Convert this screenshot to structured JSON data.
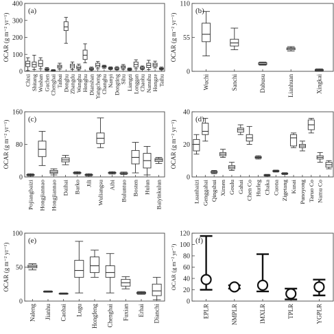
{
  "chart_data": [
    {
      "panel": "(a)",
      "type": "box",
      "ylabel": "OCAR (g m⁻² yr⁻¹)",
      "ylim": [
        0,
        400
      ],
      "yticks": [
        0,
        100,
        200,
        300,
        400
      ],
      "categories": [
        "Chixi",
        "Shitang",
        "Wushan",
        "Guchen",
        "Chenghai",
        "Taibai",
        "Donghu",
        "Zhangdu",
        "Wanghu",
        "Honghu",
        "Dianshan",
        "Yangcheng",
        "Changhu",
        "Nanyi",
        "Dongting",
        "Sihu",
        "Liangzi",
        "Longgan",
        "Chaohu",
        "Nansihu",
        "Hongze",
        "Taihu"
      ],
      "box_stats": [
        {
          "min": 5,
          "q1": 28,
          "median": 45,
          "q3": 60,
          "max": 80
        },
        {
          "min": 10,
          "q1": 25,
          "median": 40,
          "q3": 55,
          "max": 95
        },
        {
          "min": 15,
          "q1": 30,
          "median": 45,
          "q3": 65,
          "max": 80
        },
        {
          "min": 3,
          "q1": 8,
          "median": 12,
          "q3": 16,
          "max": 22
        },
        {
          "min": 0,
          "q1": 2,
          "median": 5,
          "q3": 8,
          "max": 10
        },
        {
          "min": 12,
          "q1": 20,
          "median": 28,
          "q3": 36,
          "max": 48
        },
        {
          "min": 165,
          "q1": 240,
          "median": 262,
          "q3": 292,
          "max": 318
        },
        {
          "min": 10,
          "q1": 20,
          "median": 32,
          "q3": 42,
          "max": 55
        },
        {
          "min": 8,
          "q1": 15,
          "median": 22,
          "q3": 32,
          "max": 42
        },
        {
          "min": 50,
          "q1": 70,
          "median": 95,
          "q3": 125,
          "max": 162
        },
        {
          "min": 5,
          "q1": 10,
          "median": 15,
          "q3": 20,
          "max": 25
        },
        {
          "min": 15,
          "q1": 25,
          "median": 35,
          "q3": 48,
          "max": 58
        },
        {
          "min": 18,
          "q1": 24,
          "median": 28,
          "q3": 32,
          "max": 36
        },
        {
          "min": 10,
          "q1": 14,
          "median": 18,
          "q3": 22,
          "max": 26
        },
        {
          "min": 8,
          "q1": 12,
          "median": 16,
          "q3": 22,
          "max": 28
        },
        {
          "min": 10,
          "q1": 18,
          "median": 25,
          "q3": 32,
          "max": 40
        },
        {
          "min": 5,
          "q1": 8,
          "median": 12,
          "q3": 16,
          "max": 20
        },
        {
          "min": 15,
          "q1": 25,
          "median": 40,
          "q3": 55,
          "max": 68
        },
        {
          "min": 10,
          "q1": 15,
          "median": 20,
          "q3": 26,
          "max": 32
        },
        {
          "min": 10,
          "q1": 22,
          "median": 35,
          "q3": 48,
          "max": 65
        },
        {
          "min": 20,
          "q1": 28,
          "median": 38,
          "q3": 48,
          "max": 60
        },
        {
          "min": 8,
          "q1": 12,
          "median": 16,
          "q3": 20,
          "max": 25
        }
      ]
    },
    {
      "panel": "(b)",
      "type": "box",
      "ylabel": "OCAR (g m⁻² yr⁻¹)",
      "ylim": [
        0,
        110
      ],
      "yticks": [
        0,
        55,
        110
      ],
      "categories": [
        "Wuchi",
        "Sanchi",
        "Dabusu",
        "Lianhuan",
        "Xingkai"
      ],
      "box_stats": [
        {
          "min": 25,
          "q1": 48,
          "median": 60,
          "q3": 78,
          "max": 97
        },
        {
          "min": 35,
          "q1": 41,
          "median": 46,
          "q3": 52,
          "max": 70
        },
        {
          "min": 10,
          "q1": 11,
          "median": 12,
          "q3": 14,
          "max": 15
        },
        {
          "min": 33,
          "q1": 35,
          "median": 37,
          "q3": 38,
          "max": 40
        },
        {
          "min": 0,
          "q1": 1,
          "median": 2,
          "q3": 3,
          "max": 4
        }
      ]
    },
    {
      "panel": "(c)",
      "type": "box",
      "ylabel": "OCAR (g m⁻² yr⁻¹)",
      "ylim": [
        0,
        160
      ],
      "yticks": [
        0,
        80,
        160
      ],
      "categories": [
        "Pojiangbaizi",
        "Hongjiannao",
        "Hongjiannao",
        "Daihai",
        "Barko",
        "Jili",
        "Wuliangsu",
        "Aibi",
        "Buluntuo",
        "Bosten",
        "Hulun",
        "Baiyinkulun"
      ],
      "box_stats": [
        {
          "min": 2,
          "q1": 4,
          "median": 5,
          "q3": 6,
          "max": 8
        },
        {
          "min": 28,
          "q1": 50,
          "median": 68,
          "q3": 88,
          "max": 112
        },
        {
          "min": 5,
          "q1": 9,
          "median": 12,
          "q3": 16,
          "max": 20
        },
        {
          "min": 30,
          "q1": 37,
          "median": 42,
          "q3": 47,
          "max": 53
        },
        {
          "min": 7,
          "q1": 9,
          "median": 10,
          "q3": 11,
          "max": 13
        },
        {
          "min": 2,
          "q1": 4,
          "median": 5,
          "q3": 6,
          "max": 8
        },
        {
          "min": 72,
          "q1": 82,
          "median": 95,
          "q3": 108,
          "max": 145
        },
        {
          "min": 7,
          "q1": 9,
          "median": 10,
          "q3": 11,
          "max": 13
        },
        {
          "min": 6,
          "q1": 8,
          "median": 9,
          "q3": 10,
          "max": 12
        },
        {
          "min": 10,
          "q1": 32,
          "median": 48,
          "q3": 65,
          "max": 85
        },
        {
          "min": 5,
          "q1": 22,
          "median": 40,
          "q3": 58,
          "max": 75
        },
        {
          "min": 33,
          "q1": 38,
          "median": 42,
          "q3": 45,
          "max": 48
        }
      ]
    },
    {
      "panel": "(d)",
      "type": "box",
      "ylabel": "OCAR (g m⁻² yr⁻¹)",
      "ylim": [
        0,
        40
      ],
      "yticks": [
        0,
        20,
        40
      ],
      "categories": [
        "Luanhaizi",
        "Genggahai",
        "Qingshui",
        "Ximen",
        "Goulu",
        "Gahai",
        "Chen Co",
        "Hurleg",
        "Chaka",
        "Cuona",
        "Zigetang",
        "Kusai",
        "Punoyong",
        "Taruo Co",
        "Namu Co",
        ""
      ],
      "box_stats": [
        {
          "min": 14,
          "q1": 16,
          "median": 20,
          "q3": 23,
          "max": 26
        },
        {
          "min": 22,
          "q1": 26,
          "median": 28,
          "q3": 33,
          "max": 36
        },
        {
          "min": 2,
          "q1": 2.5,
          "median": 3,
          "q3": 3.5,
          "max": 4
        },
        {
          "min": 12,
          "q1": 13,
          "median": 14,
          "q3": 15,
          "max": 17
        },
        {
          "min": 4,
          "q1": 5,
          "median": 6,
          "q3": 7,
          "max": 9
        },
        {
          "min": 26,
          "q1": 27.5,
          "median": 29,
          "q3": 30,
          "max": 32
        },
        {
          "min": 20,
          "q1": 22,
          "median": 24,
          "q3": 26,
          "max": 31
        },
        {
          "min": 11,
          "q1": 11.5,
          "median": 12,
          "q3": 12.5,
          "max": 13
        },
        {
          "min": 0.5,
          "q1": 0.8,
          "median": 1,
          "q3": 1.3,
          "max": 1.6
        },
        {
          "min": 3,
          "q1": 3.3,
          "median": 3.6,
          "q3": 3.9,
          "max": 4.2
        },
        {
          "min": 1.5,
          "q1": 1.8,
          "median": 2,
          "q3": 2.3,
          "max": 2.6
        },
        {
          "min": 18,
          "q1": 19,
          "median": 24,
          "q3": 26,
          "max": 27
        },
        {
          "min": 16,
          "q1": 18,
          "median": 19,
          "q3": 20,
          "max": 22
        },
        {
          "min": 27,
          "q1": 29,
          "median": 32,
          "q3": 35,
          "max": 36
        },
        {
          "min": 9,
          "q1": 11,
          "median": 12,
          "q3": 13,
          "max": 15
        },
        {
          "min": 5,
          "q1": 6,
          "median": 7.5,
          "q3": 9,
          "max": 10
        }
      ]
    },
    {
      "panel": "(e)",
      "type": "box",
      "ylabel": "OCAR (g m⁻² yr⁻¹)",
      "ylim": [
        0,
        100
      ],
      "yticks": [
        0,
        50,
        100
      ],
      "categories": [
        "Naleng",
        "Jianhu",
        "Caohai",
        "Lugu",
        "Hongfeng",
        "Chenghai",
        "Fuxian",
        "Erhai",
        "Dianchi"
      ],
      "box_stats": [
        {
          "min": 46,
          "q1": 49,
          "median": 51,
          "q3": 53,
          "max": 55
        },
        {
          "min": 13,
          "q1": 13.5,
          "median": 14,
          "q3": 14.5,
          "max": 15
        },
        {
          "min": 10,
          "q1": 10.5,
          "median": 11,
          "q3": 11.5,
          "max": 12
        },
        {
          "min": 12,
          "q1": 35,
          "median": 45,
          "q3": 60,
          "max": 88
        },
        {
          "min": 35,
          "q1": 42,
          "median": 52,
          "q3": 65,
          "max": 75
        },
        {
          "min": 12,
          "q1": 35,
          "median": 42,
          "q3": 52,
          "max": 70
        },
        {
          "min": 18,
          "q1": 22,
          "median": 27,
          "q3": 32,
          "max": 36
        },
        {
          "min": 10,
          "q1": 11,
          "median": 12,
          "q3": 13,
          "max": 14
        },
        {
          "min": 2,
          "q1": 8,
          "median": 15,
          "q3": 25,
          "max": 35
        }
      ]
    },
    {
      "panel": "(f)",
      "type": "errorbar",
      "ylabel": "OCAR (g m⁻² yr⁻¹)",
      "ylim": [
        0,
        120
      ],
      "yticks": [
        0,
        20,
        40,
        60,
        80,
        100,
        120
      ],
      "categories": [
        "EPLR",
        "NMPLR",
        "IMXLR",
        "TPLR",
        "YGPLR"
      ],
      "points": [
        {
          "mean": 38,
          "low": 20,
          "high": 115
        },
        {
          "mean": 25,
          "low": 22,
          "high": 28
        },
        {
          "mean": 28,
          "low": 17,
          "high": 83
        },
        {
          "mean": 13,
          "low": 3,
          "high": 22
        },
        {
          "mean": 25,
          "low": 10,
          "high": 38
        }
      ]
    }
  ]
}
